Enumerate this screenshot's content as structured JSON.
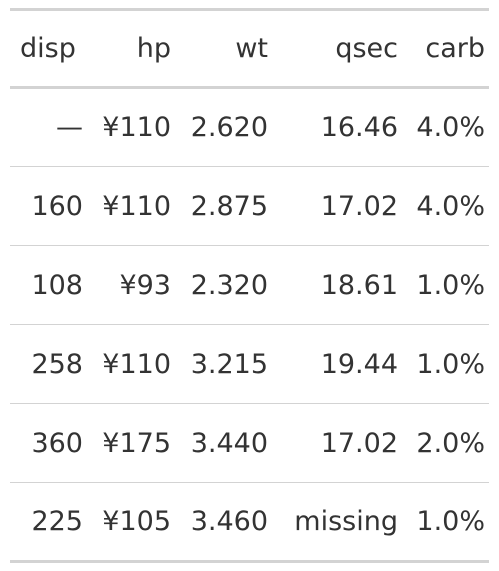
{
  "table": {
    "columns": [
      "disp",
      "hp",
      "wt",
      "qsec",
      "carb"
    ],
    "rows": [
      [
        "—",
        "¥110",
        "2.620",
        "16.46",
        "4.0%"
      ],
      [
        "160",
        "¥110",
        "2.875",
        "17.02",
        "4.0%"
      ],
      [
        "108",
        "¥93",
        "2.320",
        "18.61",
        "1.0%"
      ],
      [
        "258",
        "¥110",
        "3.215",
        "19.44",
        "1.0%"
      ],
      [
        "360",
        "¥175",
        "3.440",
        "17.02",
        "2.0%"
      ],
      [
        "225",
        "¥105",
        "3.460",
        "missing",
        "1.0%"
      ]
    ]
  },
  "colors": {
    "text": "#333333",
    "rule": "#d3d3d3",
    "background": "#ffffff"
  }
}
